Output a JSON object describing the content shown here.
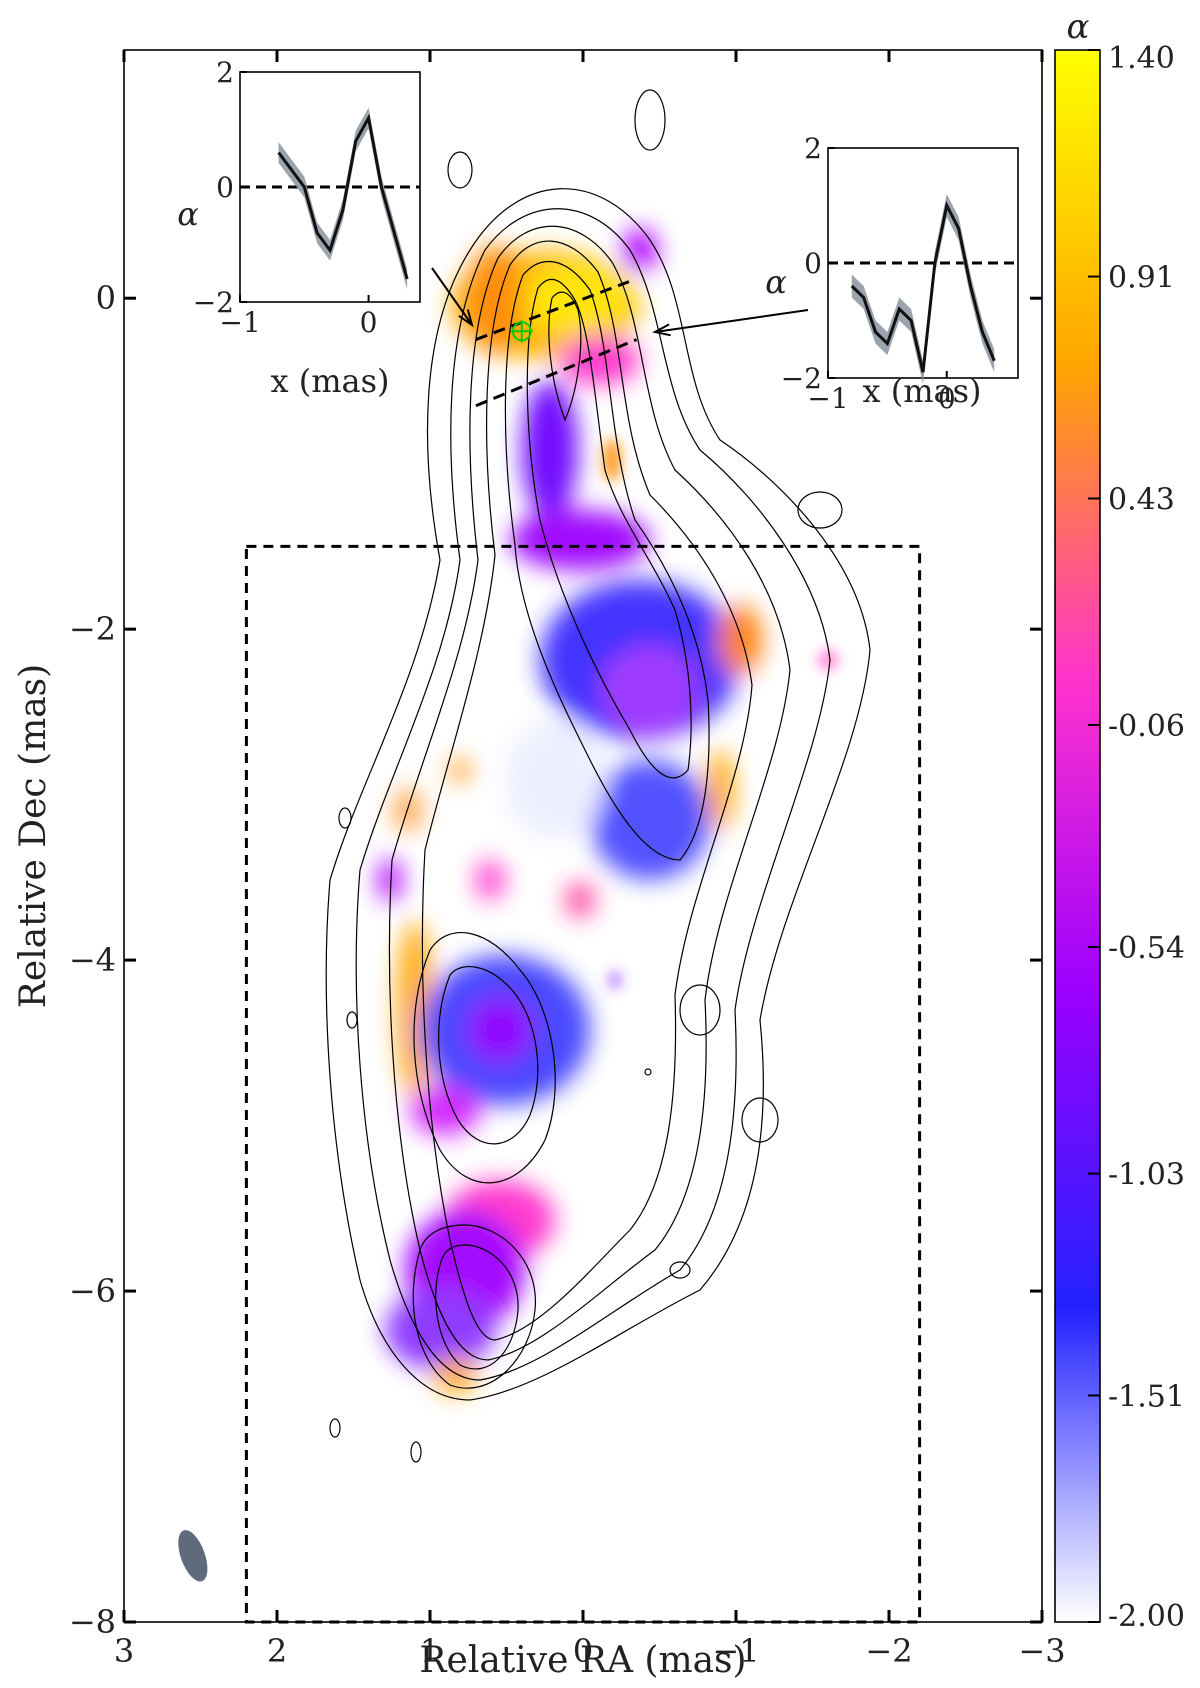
{
  "chart_data": [
    {
      "type": "heatmap",
      "title": "",
      "xlabel": "Relative RA (mas)",
      "ylabel": "Relative Dec (mas)",
      "xlim": [
        3,
        -3
      ],
      "ylim": [
        -8,
        1.5
      ],
      "x_ticks": [
        3,
        2,
        1,
        0,
        -1,
        -2,
        -3
      ],
      "x_tick_labels": [
        "3",
        "2",
        "1",
        "0",
        "−1",
        "−2",
        "−3"
      ],
      "y_ticks": [
        0,
        -2,
        -4,
        -6,
        -8
      ],
      "y_tick_labels": [
        "0",
        "−2",
        "−4",
        "−6",
        "−8"
      ],
      "colorbar": {
        "label": "α",
        "range": [
          -2.0,
          1.4
        ],
        "tick_values": [
          1.4,
          0.91,
          0.43,
          -0.06,
          -0.54,
          -1.03,
          -1.51,
          -2.0
        ],
        "tick_labels": [
          "1.40",
          "0.91",
          "0.43",
          "-0.06",
          "-0.54",
          "-1.03",
          "-1.51",
          "-2.00"
        ],
        "colors": [
          "#ffffff",
          "#2222ff",
          "#9b00ff",
          "#ff33cc",
          "#ffa500",
          "#ffff00"
        ]
      },
      "dashed_box": {
        "x": [
          2.2,
          -2.2
        ],
        "y": [
          -1.5,
          -8.0
        ]
      },
      "slices": [
        {
          "from": [
            0.7,
            -0.25
          ],
          "to": [
            -0.3,
            0.1
          ]
        },
        {
          "from": [
            0.7,
            -0.65
          ],
          "to": [
            -0.35,
            -0.25
          ]
        }
      ],
      "core_marker": {
        "x": 0.4,
        "y": -0.2,
        "color": "#00cc00"
      },
      "beam": {
        "x": 2.55,
        "y": -7.6,
        "color": "#5f6b7a"
      },
      "grid": false,
      "legend": "none"
    },
    {
      "type": "line",
      "title": "",
      "xlabel": "x (mas)",
      "ylabel": "α",
      "xlim": [
        -1,
        0.4
      ],
      "ylim": [
        -2,
        2
      ],
      "x_tick_labels": [
        "−1",
        "0"
      ],
      "y_tick_labels": [
        "2",
        "0",
        "−2"
      ],
      "reference_line": 0,
      "x": [
        -0.7,
        -0.6,
        -0.5,
        -0.4,
        -0.3,
        -0.2,
        -0.1,
        0.0,
        0.1,
        0.2,
        0.3
      ],
      "y": [
        0.6,
        0.3,
        0.0,
        -0.8,
        -1.1,
        -0.4,
        0.8,
        1.2,
        0.0,
        -0.8,
        -1.6
      ],
      "band": 0.18
    },
    {
      "type": "line",
      "title": "",
      "xlabel": "x (mas)",
      "ylabel": "α",
      "xlim": [
        -1,
        0.6
      ],
      "ylim": [
        -2,
        2
      ],
      "x_tick_labels": [
        "−1",
        "0"
      ],
      "y_tick_labels": [
        "2",
        "0",
        "−2"
      ],
      "reference_line": 0,
      "x": [
        -0.8,
        -0.7,
        -0.6,
        -0.5,
        -0.4,
        -0.3,
        -0.2,
        -0.1,
        0.0,
        0.1,
        0.2,
        0.3,
        0.4
      ],
      "y": [
        -0.4,
        -0.6,
        -1.2,
        -1.4,
        -0.8,
        -1.0,
        -1.9,
        0.0,
        1.0,
        0.6,
        -0.4,
        -1.2,
        -1.7
      ],
      "band": 0.2
    }
  ]
}
